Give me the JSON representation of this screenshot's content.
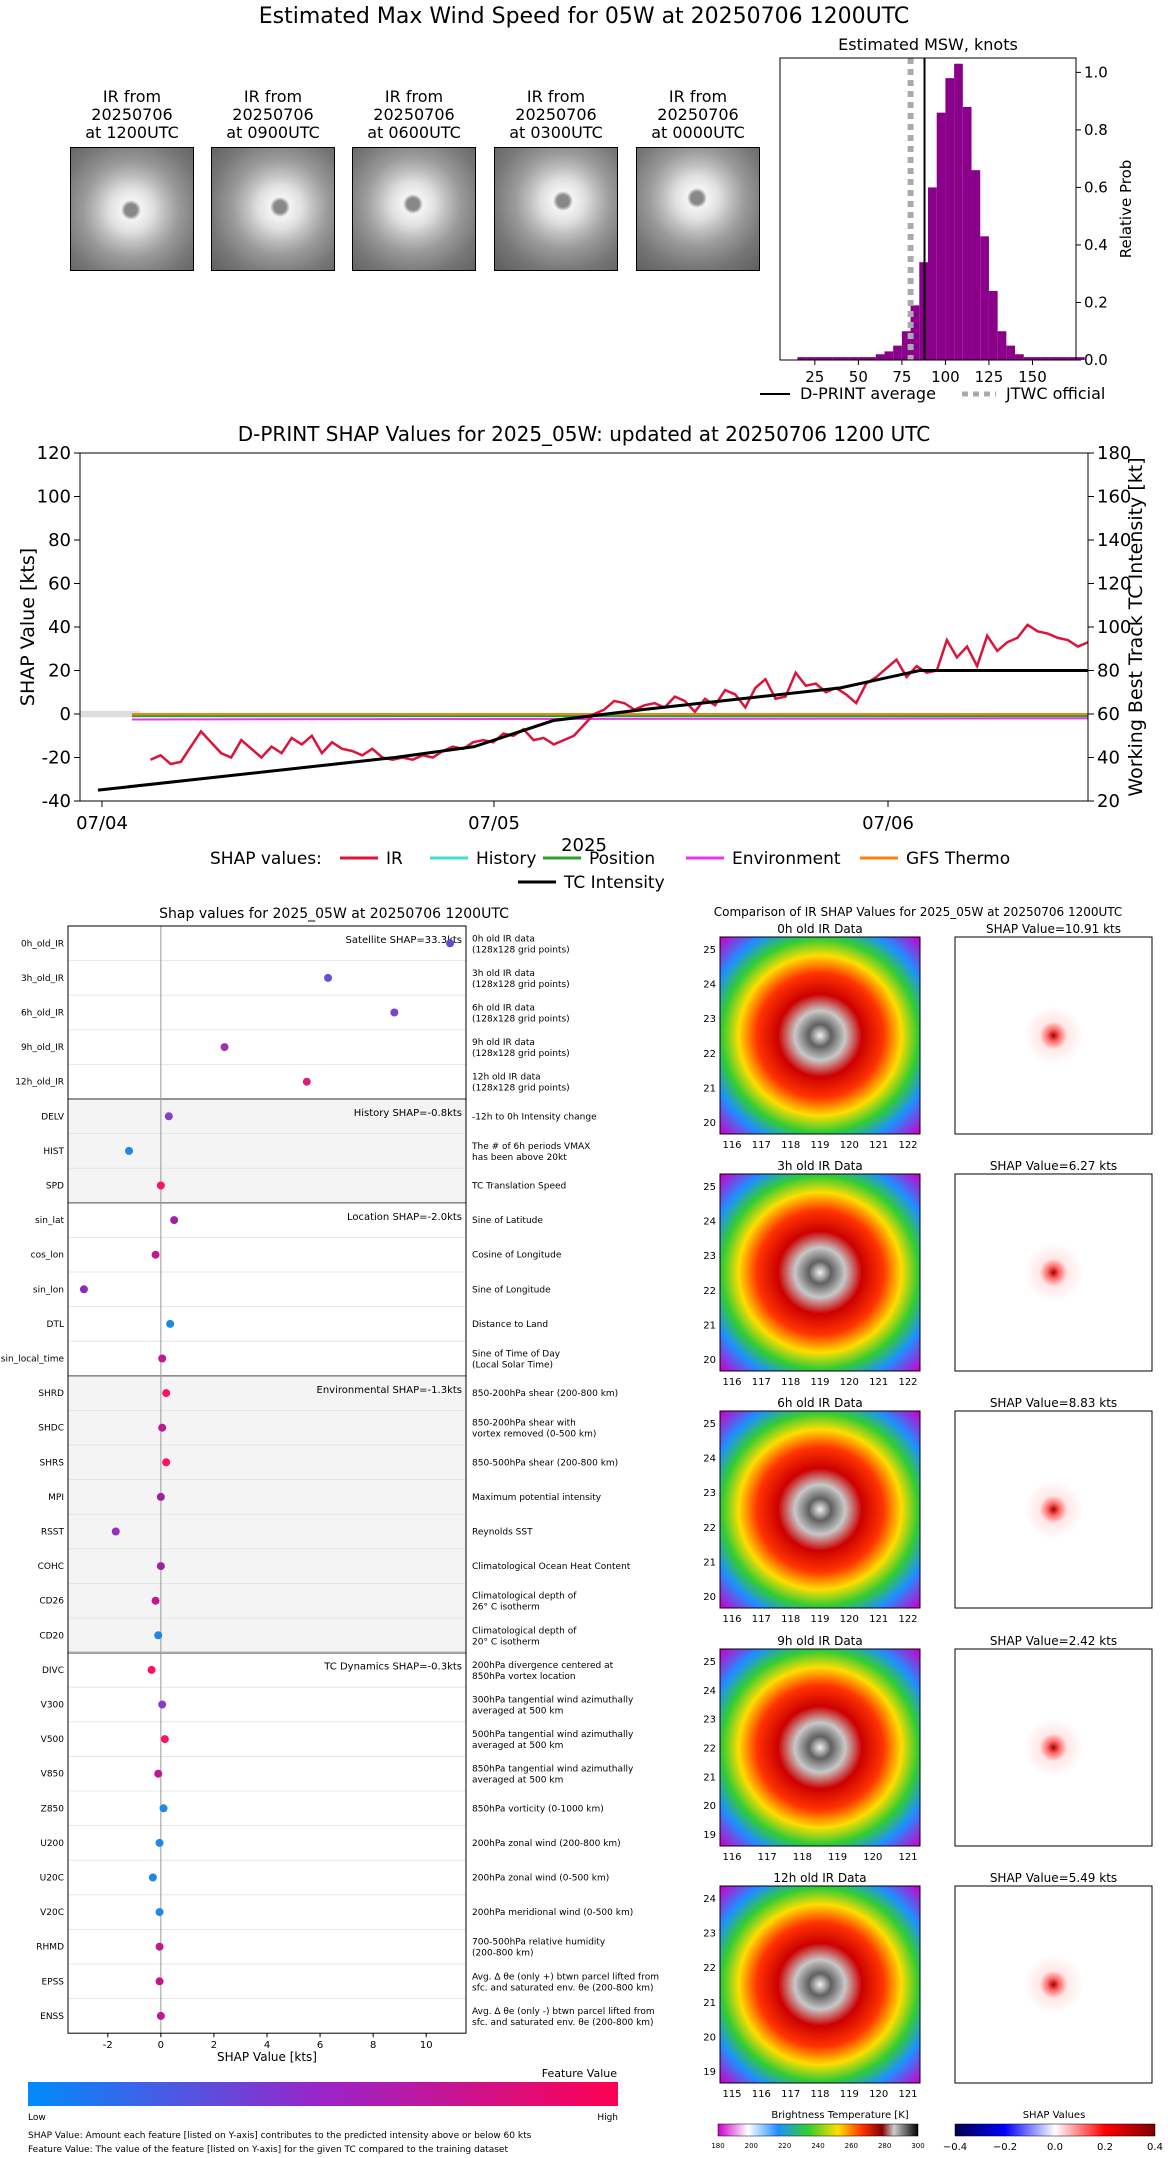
{
  "header": {
    "title": "Estimated Max Wind Speed for 05W at 20250706 1200UTC"
  },
  "thumbnails": [
    {
      "label_1": "IR from",
      "label_2": "20250706",
      "label_3": "at 1200UTC"
    },
    {
      "label_1": "IR from",
      "label_2": "20250706",
      "label_3": "at 0900UTC"
    },
    {
      "label_1": "IR from",
      "label_2": "20250706",
      "label_3": "at 0600UTC"
    },
    {
      "label_1": "IR from",
      "label_2": "20250706",
      "label_3": "at 0300UTC"
    },
    {
      "label_1": "IR from",
      "label_2": "20250706",
      "label_3": "at 0000UTC"
    }
  ],
  "colors": {
    "purple": "#8b008b",
    "ir": "#dc143c",
    "history": "#40e0d0",
    "position": "#2ca02c",
    "environment": "#e934e9",
    "gfs": "#ff7f0e",
    "tc": "#000000",
    "jtwc": "#aaaaaa"
  },
  "chart_data": [
    {
      "type": "bar",
      "title": "Estimated MSW, knots",
      "ylabel": "Relative Prob",
      "xlim": [
        5,
        175
      ],
      "ylim": [
        0,
        1.05
      ],
      "xticks": [
        "25",
        "50",
        "75",
        "100",
        "125",
        "150"
      ],
      "yticks": [
        "0.0",
        "0.2",
        "0.4",
        "0.6",
        "0.8",
        "1.0"
      ],
      "bins_start": 15,
      "bin_width": 5,
      "values": [
        0.01,
        0.01,
        0.01,
        0.01,
        0.01,
        0.01,
        0.01,
        0.01,
        0.01,
        0.02,
        0.03,
        0.05,
        0.1,
        0.19,
        0.34,
        0.6,
        0.86,
        0.98,
        1.03,
        0.88,
        0.66,
        0.43,
        0.24,
        0.1,
        0.05,
        0.02,
        0.01,
        0.01,
        0.01,
        0.01,
        0.01,
        0.01,
        0.01
      ],
      "dprint_average": 88,
      "jtwc_official": 80,
      "legend": [
        {
          "name": "D-PRINT average",
          "style": "solid"
        },
        {
          "name": "JTWC official",
          "style": "dotted"
        }
      ]
    },
    {
      "type": "line",
      "title": "D-PRINT SHAP Values for 2025_05W: updated at 20250706 1200 UTC",
      "xlabel": "2025",
      "ylabel_left": "SHAP Value [kts]",
      "ylabel_right": "Working Best Track TC Intensity [kt]",
      "ylim_left": [
        -40,
        120
      ],
      "ylim_right": [
        20,
        180
      ],
      "yticks_left": [
        "-40",
        "-20",
        "0",
        "20",
        "40",
        "60",
        "80",
        "100",
        "120"
      ],
      "yticks_right": [
        "20",
        "40",
        "60",
        "80",
        "100",
        "120",
        "140",
        "160",
        "180"
      ],
      "xticks": [
        "07/04",
        "07/05",
        "07/06"
      ],
      "legend_title": "SHAP values:",
      "series": [
        {
          "name": "IR",
          "x": [
            0.07,
            0.08,
            0.09,
            0.1,
            0.12,
            0.13,
            0.14,
            0.15,
            0.16,
            0.18,
            0.19,
            0.2,
            0.21,
            0.22,
            0.23,
            0.24,
            0.25,
            0.26,
            0.27,
            0.28,
            0.29,
            0.3,
            0.31,
            0.32,
            0.33,
            0.34,
            0.35,
            0.36,
            0.37,
            0.38,
            0.39,
            0.4,
            0.41,
            0.42,
            0.43,
            0.44,
            0.45,
            0.46,
            0.47,
            0.48,
            0.49,
            0.5,
            0.51,
            0.52,
            0.53,
            0.54,
            0.55,
            0.56,
            0.57,
            0.58,
            0.59,
            0.6,
            0.61,
            0.62,
            0.63,
            0.64,
            0.65,
            0.66,
            0.67,
            0.68,
            0.69,
            0.7,
            0.71,
            0.72,
            0.73,
            0.74,
            0.75,
            0.76,
            0.77,
            0.78,
            0.79,
            0.8,
            0.81,
            0.82,
            0.83,
            0.84,
            0.85,
            0.86,
            0.87,
            0.88,
            0.89,
            0.9,
            0.91,
            0.92,
            0.93,
            0.94,
            0.95,
            0.96,
            0.97,
            0.98,
            0.99,
            1.0
          ],
          "values": [
            -21,
            -19,
            -23,
            -22,
            -8,
            -13,
            -18,
            -20,
            -12,
            -20,
            -15,
            -18,
            -11,
            -14,
            -10,
            -18,
            -13,
            -16,
            -17,
            -19,
            -16,
            -20,
            -21,
            -20,
            -21,
            -19,
            -20,
            -17,
            -15,
            -16,
            -13,
            -12,
            -13,
            -9,
            -10,
            -7,
            -12,
            -11,
            -14,
            -12,
            -10,
            -5,
            0,
            2,
            6,
            5,
            2,
            4,
            5,
            3,
            8,
            6,
            1,
            7,
            4,
            11,
            9,
            3,
            12,
            16,
            7,
            8,
            19,
            13,
            14,
            10,
            12,
            9,
            5,
            14,
            17,
            21,
            25,
            17,
            22,
            19,
            20,
            34,
            26,
            31,
            22,
            36,
            29,
            33,
            35,
            41,
            38,
            37,
            35,
            34,
            31,
            33
          ]
        },
        {
          "name": "History",
          "values": [
            -1,
            -1
          ]
        },
        {
          "name": "Position",
          "values": [
            -1,
            -1
          ]
        },
        {
          "name": "Environment",
          "values": [
            -2.5,
            -2
          ]
        },
        {
          "name": "GFS Thermo",
          "values": [
            0,
            0
          ]
        },
        {
          "name": "TC Intensity",
          "x": [
            0.0,
            0.1,
            0.2,
            0.3,
            0.38,
            0.46,
            0.55,
            0.65,
            0.75,
            0.83,
            0.9,
            1.0
          ],
          "values": [
            25,
            30,
            35,
            40,
            45,
            57,
            62,
            67,
            72,
            80,
            80,
            80
          ]
        }
      ]
    },
    {
      "type": "scatter",
      "title": "Shap values for 2025_05W at 20250706 1200UTC",
      "xlabel": "SHAP Value [kts]",
      "xlim": [
        -3.5,
        11.5
      ],
      "xticks": [
        "-2",
        "0",
        "2",
        "4",
        "6",
        "8",
        "10"
      ],
      "groups": [
        {
          "label": "Satellite SHAP=33.3kts"
        },
        {
          "label": "History SHAP=-0.8kts"
        },
        {
          "label": "Location SHAP=-2.0kts"
        },
        {
          "label": "Environmental SHAP=-1.3kts"
        },
        {
          "label": "TC Dynamics SHAP=-0.3kts"
        }
      ],
      "features": [
        {
          "name": "0h_old_IR",
          "desc1": "0h old IR data",
          "desc2": "(128x128 grid points)",
          "value": 10.9,
          "color": "#5a4fcf"
        },
        {
          "name": "3h_old_IR",
          "desc1": "3h old IR data",
          "desc2": "(128x128 grid points)",
          "value": 6.3,
          "color": "#6a4fd5"
        },
        {
          "name": "6h_old_IR",
          "desc1": "6h old IR data",
          "desc2": "(128x128 grid points)",
          "value": 8.8,
          "color": "#7a44c8"
        },
        {
          "name": "9h_old_IR",
          "desc1": "9h old IR data",
          "desc2": "(128x128 grid points)",
          "value": 2.4,
          "color": "#a030b0"
        },
        {
          "name": "12h_old_IR",
          "desc1": "12h old IR data",
          "desc2": "(128x128 grid points)",
          "value": 5.5,
          "color": "#d8207a"
        },
        {
          "name": "DELV",
          "desc1": "-12h to 0h Intensity change",
          "desc2": "",
          "value": 0.3,
          "color": "#8a3ec8"
        },
        {
          "name": "HIST",
          "desc1": "The # of 6h periods VMAX",
          "desc2": "has been above 20kt",
          "value": -1.2,
          "color": "#1e88e5"
        },
        {
          "name": "SPD",
          "desc1": "TC Translation Speed",
          "desc2": "",
          "value": 0.0,
          "color": "#ff1060"
        },
        {
          "name": "sin_lat",
          "desc1": "Sine of Latitude",
          "desc2": "",
          "value": 0.5,
          "color": "#a020a0"
        },
        {
          "name": "cos_lon",
          "desc1": "Cosine of Longitude",
          "desc2": "",
          "value": -0.2,
          "color": "#c01890"
        },
        {
          "name": "sin_lon",
          "desc1": "Sine of Longitude",
          "desc2": "",
          "value": -2.9,
          "color": "#8a2ab8"
        },
        {
          "name": "DTL",
          "desc1": "Distance to Land",
          "desc2": "",
          "value": 0.35,
          "color": "#1e88e5"
        },
        {
          "name": "sin_local_time",
          "desc1": "Sine of Time of Day",
          "desc2": "(Local Solar Time)",
          "value": 0.05,
          "color": "#c01890"
        },
        {
          "name": "SHRD",
          "desc1": "850-200hPa shear (200-800 km)",
          "desc2": "",
          "value": 0.2,
          "color": "#ff1060"
        },
        {
          "name": "SHDC",
          "desc1": "850-200hPa shear with",
          "desc2": "vortex removed (0-500 km)",
          "value": 0.05,
          "color": "#c01890"
        },
        {
          "name": "SHRS",
          "desc1": "850-500hPa shear (200-800 km)",
          "desc2": "",
          "value": 0.2,
          "color": "#ff1060"
        },
        {
          "name": "MPI",
          "desc1": "Maximum potential intensity",
          "desc2": "",
          "value": 0.0,
          "color": "#a020a0"
        },
        {
          "name": "RSST",
          "desc1": "Reynolds SST",
          "desc2": "",
          "value": -1.7,
          "color": "#9030c0"
        },
        {
          "name": "COHC",
          "desc1": "Climatological Ocean Heat Content",
          "desc2": "",
          "value": 0.0,
          "color": "#a020a0"
        },
        {
          "name": "CD26",
          "desc1": "Climatological depth of",
          "desc2": "26° C isotherm",
          "value": -0.2,
          "color": "#c01890"
        },
        {
          "name": "CD20",
          "desc1": "Climatological depth of",
          "desc2": "20° C isotherm",
          "value": -0.1,
          "color": "#1e88e5"
        },
        {
          "name": "DIVC",
          "desc1": "200hPa divergence centered at",
          "desc2": "850hPa vortex location",
          "value": -0.35,
          "color": "#ff1060"
        },
        {
          "name": "V300",
          "desc1": "300hPa tangential wind azimuthally",
          "desc2": "averaged at 500 km",
          "value": 0.05,
          "color": "#8a3ec8"
        },
        {
          "name": "V500",
          "desc1": "500hPa tangential wind azimuthally",
          "desc2": "averaged at 500 km",
          "value": 0.15,
          "color": "#ff1060"
        },
        {
          "name": "V850",
          "desc1": "850hPa tangential wind azimuthally",
          "desc2": "averaged at 500 km",
          "value": -0.1,
          "color": "#c01890"
        },
        {
          "name": "Z850",
          "desc1": "850hPa vorticity (0-1000 km)",
          "desc2": "",
          "value": 0.1,
          "color": "#1e88e5"
        },
        {
          "name": "U200",
          "desc1": "200hPa zonal wind (200-800 km)",
          "desc2": "",
          "value": -0.05,
          "color": "#1e88e5"
        },
        {
          "name": "U20C",
          "desc1": "200hPa zonal wind (0-500 km)",
          "desc2": "",
          "value": -0.3,
          "color": "#1e88e5"
        },
        {
          "name": "V20C",
          "desc1": "200hPa meridional wind (0-500 km)",
          "desc2": "",
          "value": -0.05,
          "color": "#1e88e5"
        },
        {
          "name": "RHMD",
          "desc1": "700-500hPa relative humidity",
          "desc2": "(200-800 km)",
          "value": -0.05,
          "color": "#c01890"
        },
        {
          "name": "EPSS",
          "desc1": "Avg. Δ θe (only +) btwn parcel lifted from",
          "desc2": "sfc. and saturated env. θe (200-800 km)",
          "value": -0.05,
          "color": "#c01890"
        },
        {
          "name": "ENSS",
          "desc1": "Avg. Δ θe (only -) btwn parcel lifted from",
          "desc2": "sfc. and saturated env. θe (200-800 km)",
          "value": 0.0,
          "color": "#c01890"
        }
      ]
    }
  ],
  "colorbar": {
    "title": "Feature Value",
    "low": "Low",
    "high": "High"
  },
  "footnotes": {
    "line1": "SHAP Value: Amount each feature [listed on Y-axis] contributes to the predicted intensity above or below 60 kts",
    "line2": "Feature Value: The value of the feature [listed on Y-axis] for the given TC compared to the training dataset"
  },
  "comparison": {
    "title": "Comparison of IR SHAP Values for 2025_05W at 20250706 1200UTC",
    "rows": [
      {
        "ir_title": "0h old IR Data",
        "shap_title": "SHAP Value=10.91 kts",
        "yticks": [
          "25",
          "24",
          "23",
          "22",
          "21",
          "20"
        ],
        "xticks": [
          "116",
          "117",
          "118",
          "119",
          "120",
          "121",
          "122"
        ]
      },
      {
        "ir_title": "3h old IR Data",
        "shap_title": "SHAP Value=6.27 kts",
        "yticks": [
          "25",
          "24",
          "23",
          "22",
          "21",
          "20"
        ],
        "xticks": [
          "116",
          "117",
          "118",
          "119",
          "120",
          "121",
          "122"
        ]
      },
      {
        "ir_title": "6h old IR Data",
        "shap_title": "SHAP Value=8.83 kts",
        "yticks": [
          "25",
          "24",
          "23",
          "22",
          "21",
          "20"
        ],
        "xticks": [
          "116",
          "117",
          "118",
          "119",
          "120",
          "121",
          "122"
        ]
      },
      {
        "ir_title": "9h old IR Data",
        "shap_title": "SHAP Value=2.42 kts",
        "yticks": [
          "25",
          "24",
          "23",
          "22",
          "21",
          "20",
          "19"
        ],
        "xticks": [
          "116",
          "117",
          "118",
          "119",
          "120",
          "121"
        ]
      },
      {
        "ir_title": "12h old IR Data",
        "shap_title": "SHAP Value=5.49 kts",
        "yticks": [
          "24",
          "23",
          "22",
          "21",
          "20",
          "19"
        ],
        "xticks": [
          "115",
          "116",
          "117",
          "118",
          "119",
          "120",
          "121"
        ]
      }
    ],
    "bt_colorbar": {
      "title": "Brightness Temperature [K]",
      "ticks": [
        "180",
        "200",
        "220",
        "240",
        "260",
        "280",
        "300"
      ]
    },
    "shap_colorbar": {
      "title": "SHAP Values",
      "ticks": [
        "−0.4",
        "−0.2",
        "0.0",
        "0.2",
        "0.4"
      ]
    }
  }
}
